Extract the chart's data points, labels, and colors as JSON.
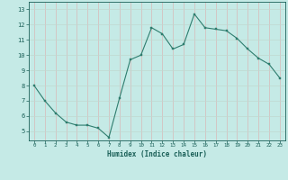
{
  "x": [
    0,
    1,
    2,
    3,
    4,
    5,
    6,
    7,
    8,
    9,
    10,
    11,
    12,
    13,
    14,
    15,
    16,
    17,
    18,
    19,
    20,
    21,
    22,
    23
  ],
  "y": [
    8.0,
    7.0,
    6.2,
    5.6,
    5.4,
    5.4,
    5.2,
    4.6,
    7.2,
    9.7,
    10.0,
    11.8,
    11.4,
    10.4,
    10.7,
    12.7,
    11.8,
    11.7,
    11.6,
    11.1,
    10.4,
    9.8,
    9.4,
    8.5
  ],
  "line_color": "#2e7d6e",
  "marker_color": "#2e7d6e",
  "bg_color": "#c5eae6",
  "grid_color_h": "#c0d8d0",
  "grid_color_v": "#d8b8b8",
  "axis_label_color": "#1a5f57",
  "tick_color": "#1a5f57",
  "xlabel": "Humidex (Indice chaleur)",
  "xlim": [
    -0.5,
    23.5
  ],
  "ylim": [
    4.4,
    13.5
  ],
  "yticks": [
    5,
    6,
    7,
    8,
    9,
    10,
    11,
    12,
    13
  ],
  "xticks": [
    0,
    1,
    2,
    3,
    4,
    5,
    6,
    7,
    8,
    9,
    10,
    11,
    12,
    13,
    14,
    15,
    16,
    17,
    18,
    19,
    20,
    21,
    22,
    23
  ]
}
